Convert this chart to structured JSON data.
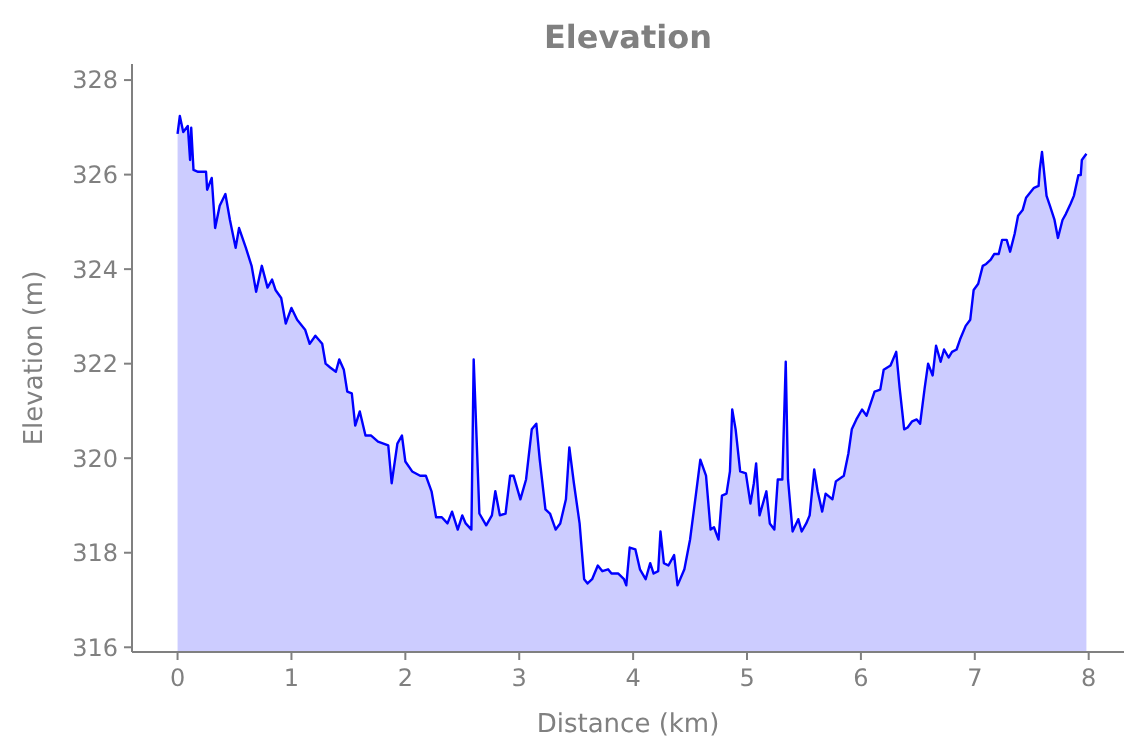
{
  "chart_data": {
    "type": "area",
    "title": "Elevation",
    "xlabel": "Distance (km)",
    "ylabel": "Elevation (m)",
    "xlim": [
      -0.4,
      8.31
    ],
    "xticks": [
      0,
      1,
      2,
      3,
      4,
      5,
      6,
      7,
      8
    ],
    "ylim": [
      315.9,
      328.34
    ],
    "yticks": [
      316,
      318,
      320,
      322,
      324,
      326,
      328
    ],
    "grid": false,
    "series": [
      {
        "color": "#0000ff",
        "x": [
          0,
          0.02,
          0.05,
          0.09,
          0.11,
          0.12,
          0.14,
          0.18,
          0.25,
          0.26,
          0.3,
          0.33,
          0.37,
          0.42,
          0.46,
          0.51,
          0.54,
          0.6,
          0.65,
          0.69,
          0.74,
          0.79,
          0.83,
          0.86,
          0.91,
          0.95,
          1.0,
          1.05,
          1.12,
          1.16,
          1.21,
          1.27,
          1.3,
          1.34,
          1.39,
          1.42,
          1.46,
          1.49,
          1.53,
          1.56,
          1.6,
          1.65,
          1.7,
          1.76,
          1.85,
          1.88,
          1.93,
          1.97,
          2.0,
          2.06,
          2.13,
          2.18,
          2.23,
          2.27,
          2.32,
          2.37,
          2.41,
          2.46,
          2.5,
          2.53,
          2.58,
          2.6,
          2.65,
          2.71,
          2.76,
          2.79,
          2.83,
          2.88,
          2.92,
          2.95,
          3.01,
          3.06,
          3.11,
          3.15,
          3.18,
          3.23,
          3.27,
          3.32,
          3.36,
          3.41,
          3.44,
          3.48,
          3.53,
          3.57,
          3.6,
          3.64,
          3.69,
          3.73,
          3.78,
          3.81,
          3.87,
          3.92,
          3.94,
          3.97,
          4.02,
          4.06,
          4.11,
          4.15,
          4.18,
          4.22,
          4.24,
          4.27,
          4.31,
          4.36,
          4.39,
          4.45,
          4.5,
          4.55,
          4.59,
          4.64,
          4.68,
          4.71,
          4.75,
          4.78,
          4.82,
          4.85,
          4.87,
          4.9,
          4.94,
          4.99,
          5.03,
          5.06,
          5.08,
          5.11,
          5.17,
          5.2,
          5.24,
          5.27,
          5.31,
          5.34,
          5.36,
          5.4,
          5.45,
          5.48,
          5.52,
          5.55,
          5.59,
          5.62,
          5.66,
          5.69,
          5.75,
          5.78,
          5.85,
          5.89,
          5.92,
          5.96,
          6.01,
          6.05,
          6.12,
          6.17,
          6.2,
          6.26,
          6.31,
          6.34,
          6.38,
          6.41,
          6.45,
          6.49,
          6.52,
          6.56,
          6.59,
          6.63,
          6.66,
          6.7,
          6.73,
          6.77,
          6.8,
          6.84,
          6.87,
          6.92,
          6.96,
          6.99,
          7.03,
          7.07,
          7.1,
          7.14,
          7.17,
          7.21,
          7.24,
          7.28,
          7.31,
          7.35,
          7.38,
          7.42,
          7.45,
          7.49,
          7.52,
          7.56,
          7.57,
          7.59,
          7.63,
          7.66,
          7.7,
          7.73,
          7.77,
          7.8,
          7.84,
          7.87,
          7.91,
          7.93,
          7.94,
          7.98
        ],
        "values": [
          326.86,
          327.24,
          326.9,
          327.03,
          326.31,
          326.99,
          326.1,
          326.06,
          326.06,
          325.68,
          325.93,
          324.87,
          325.34,
          325.59,
          325.04,
          324.45,
          324.87,
          324.45,
          324.07,
          323.52,
          324.07,
          323.61,
          323.78,
          323.56,
          323.39,
          322.85,
          323.18,
          322.93,
          322.72,
          322.42,
          322.59,
          322.42,
          322.0,
          321.92,
          321.83,
          322.09,
          321.87,
          321.41,
          321.37,
          320.69,
          320.99,
          320.48,
          320.48,
          320.35,
          320.27,
          319.47,
          320.31,
          320.48,
          319.93,
          319.72,
          319.63,
          319.63,
          319.3,
          318.75,
          318.75,
          318.62,
          318.87,
          318.49,
          318.79,
          318.62,
          318.49,
          322.09,
          318.83,
          318.58,
          318.79,
          319.3,
          318.79,
          318.83,
          319.63,
          319.63,
          319.13,
          319.55,
          320.61,
          320.73,
          319.97,
          318.92,
          318.83,
          318.49,
          318.62,
          319.13,
          320.23,
          319.47,
          318.62,
          317.44,
          317.35,
          317.44,
          317.73,
          317.61,
          317.65,
          317.56,
          317.56,
          317.44,
          317.31,
          318.11,
          318.07,
          317.65,
          317.44,
          317.78,
          317.56,
          317.61,
          318.45,
          317.78,
          317.73,
          317.95,
          317.31,
          317.65,
          318.28,
          319.21,
          319.97,
          319.63,
          318.49,
          318.54,
          318.28,
          319.21,
          319.25,
          319.72,
          321.03,
          320.61,
          319.72,
          319.68,
          319.04,
          319.47,
          319.89,
          318.79,
          319.3,
          318.62,
          318.49,
          319.55,
          319.55,
          322.04,
          319.55,
          318.45,
          318.71,
          318.45,
          318.62,
          318.79,
          319.76,
          319.3,
          318.87,
          319.25,
          319.13,
          319.51,
          319.63,
          320.1,
          320.61,
          320.82,
          321.03,
          320.9,
          321.41,
          321.45,
          321.87,
          321.96,
          322.25,
          321.49,
          320.61,
          320.65,
          320.78,
          320.82,
          320.73,
          321.49,
          322.0,
          321.75,
          322.38,
          322.04,
          322.3,
          322.13,
          322.25,
          322.3,
          322.51,
          322.8,
          322.93,
          323.56,
          323.69,
          324.07,
          324.11,
          324.2,
          324.32,
          324.32,
          324.62,
          324.62,
          324.37,
          324.75,
          325.13,
          325.25,
          325.51,
          325.63,
          325.72,
          325.76,
          326.1,
          326.48,
          325.55,
          325.34,
          325.04,
          324.66,
          325.04,
          325.17,
          325.38,
          325.55,
          325.99,
          325.99,
          326.31,
          326.44
        ]
      }
    ]
  }
}
